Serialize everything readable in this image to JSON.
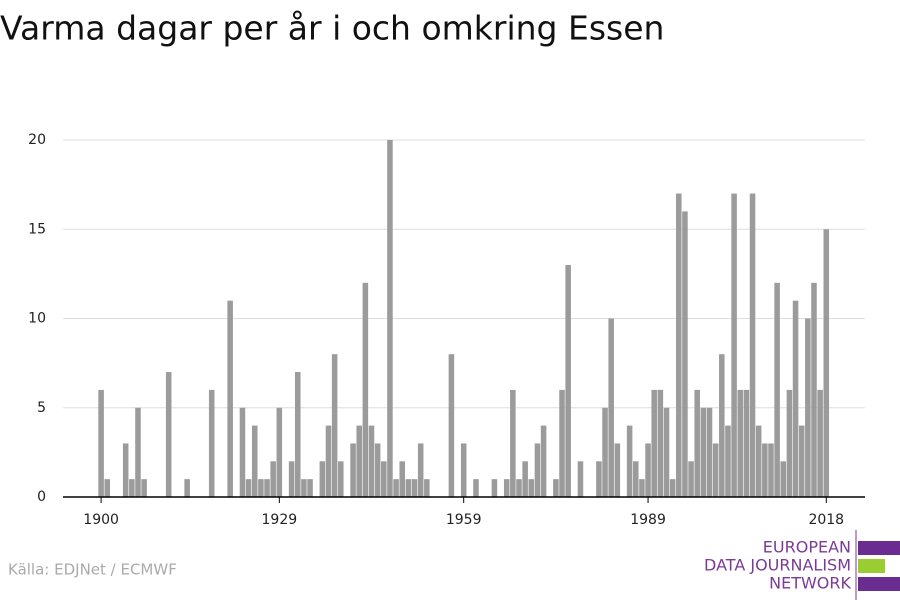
{
  "chart_data": {
    "type": "bar",
    "title": "Varma dagar per år i och omkring Essen",
    "source": "Källa: EDJNet / ECMWF",
    "logo": [
      "EUROPEAN",
      "DATA JOURNALISM",
      "NETWORK"
    ],
    "color": "#9b9b9b",
    "grid": true,
    "x": [
      1900,
      1901,
      1902,
      1903,
      1904,
      1905,
      1906,
      1907,
      1908,
      1909,
      1910,
      1911,
      1912,
      1913,
      1914,
      1915,
      1916,
      1917,
      1918,
      1919,
      1920,
      1921,
      1922,
      1923,
      1924,
      1925,
      1926,
      1927,
      1928,
      1929,
      1930,
      1931,
      1932,
      1933,
      1934,
      1935,
      1936,
      1937,
      1938,
      1939,
      1940,
      1941,
      1942,
      1943,
      1944,
      1945,
      1946,
      1947,
      1948,
      1949,
      1950,
      1951,
      1952,
      1953,
      1954,
      1955,
      1956,
      1957,
      1958,
      1959,
      1960,
      1961,
      1962,
      1963,
      1964,
      1965,
      1966,
      1967,
      1968,
      1969,
      1970,
      1971,
      1972,
      1973,
      1974,
      1975,
      1976,
      1977,
      1978,
      1979,
      1980,
      1981,
      1982,
      1983,
      1984,
      1985,
      1986,
      1987,
      1988,
      1989,
      1990,
      1991,
      1992,
      1993,
      1994,
      1995,
      1996,
      1997,
      1998,
      1999,
      2000,
      2001,
      2002,
      2003,
      2004,
      2005,
      2006,
      2007,
      2008,
      2009,
      2010,
      2011,
      2012,
      2013,
      2014,
      2015,
      2016,
      2017,
      2018
    ],
    "values": [
      6,
      1,
      0,
      0,
      3,
      1,
      5,
      1,
      0,
      0,
      0,
      7,
      0,
      0,
      1,
      0,
      0,
      0,
      6,
      0,
      0,
      11,
      0,
      5,
      1,
      4,
      1,
      1,
      2,
      5,
      0,
      2,
      7,
      1,
      1,
      0,
      2,
      4,
      8,
      2,
      0,
      3,
      4,
      12,
      4,
      3,
      2,
      20,
      1,
      2,
      1,
      1,
      3,
      1,
      0,
      0,
      0,
      8,
      0,
      3,
      0,
      1,
      0,
      0,
      1,
      0,
      1,
      6,
      1,
      2,
      1,
      3,
      4,
      0,
      1,
      6,
      13,
      0,
      2,
      0,
      0,
      2,
      5,
      10,
      3,
      0,
      4,
      2,
      1,
      3,
      6,
      6,
      5,
      1,
      17,
      16,
      2,
      6,
      5,
      5,
      3,
      8,
      4,
      17,
      6,
      6,
      17,
      4,
      3,
      3,
      12,
      2,
      6,
      11,
      4,
      10,
      12,
      6,
      15
    ],
    "xlim": [
      1893.8,
      2024.3
    ],
    "xticks": [
      1900,
      1929,
      1959,
      1989,
      2018
    ],
    "ylim": [
      0,
      20
    ],
    "yticks": [
      0,
      5,
      10,
      15,
      20
    ]
  }
}
